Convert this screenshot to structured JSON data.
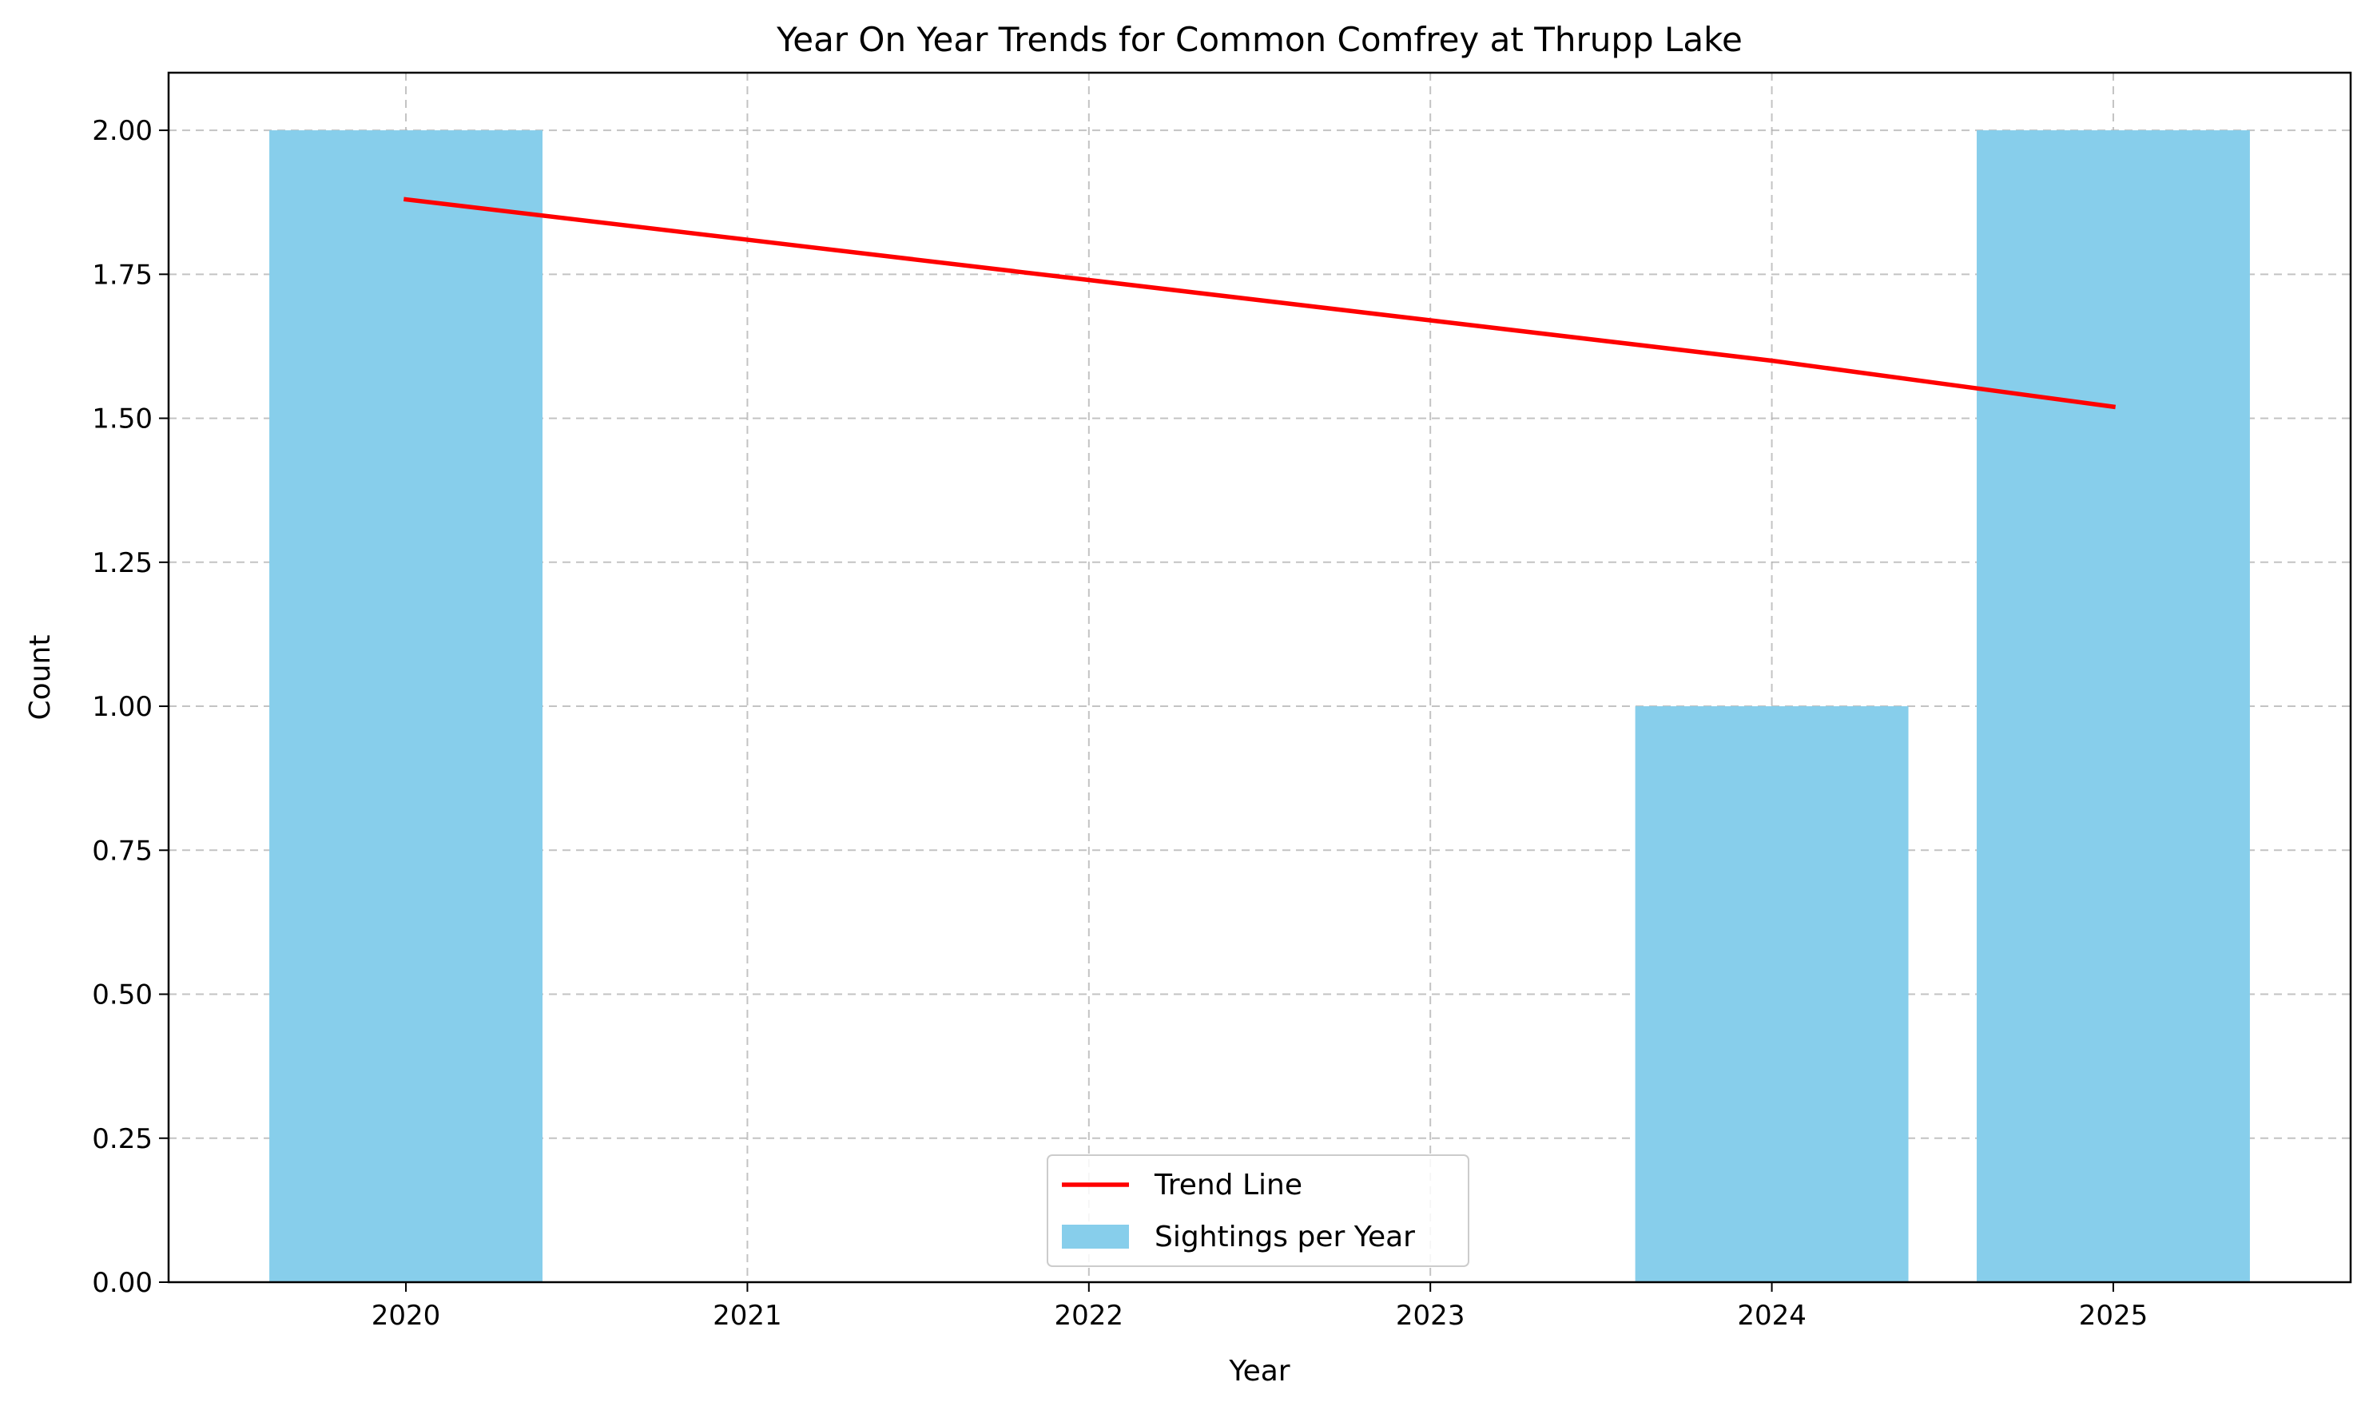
{
  "chart_data": {
    "type": "bar",
    "title": "Year On Year Trends for Common Comfrey at Thrupp Lake",
    "xlabel": "Year",
    "ylabel": "Count",
    "categories": [
      "2020",
      "2021",
      "2022",
      "2023",
      "2024",
      "2025"
    ],
    "series": [
      {
        "name": "Sightings per Year",
        "type": "bar",
        "color": "#87ceeb",
        "values": [
          2,
          0,
          0,
          0,
          1,
          2
        ]
      },
      {
        "name": "Trend Line",
        "type": "line",
        "color": "#ff0000",
        "values": [
          1.88,
          1.81,
          1.74,
          1.67,
          1.6,
          1.52
        ]
      }
    ],
    "ylim": [
      0,
      2.1
    ],
    "yticks": [
      "0.00",
      "0.25",
      "0.50",
      "0.75",
      "1.00",
      "1.25",
      "1.50",
      "1.75",
      "2.00"
    ],
    "grid": true,
    "legend": {
      "position": "bottom-center",
      "entries": [
        {
          "label": "Trend Line",
          "marker": "line",
          "color": "#ff0000"
        },
        {
          "label": "Sightings per Year",
          "marker": "patch",
          "color": "#87ceeb"
        }
      ]
    }
  }
}
